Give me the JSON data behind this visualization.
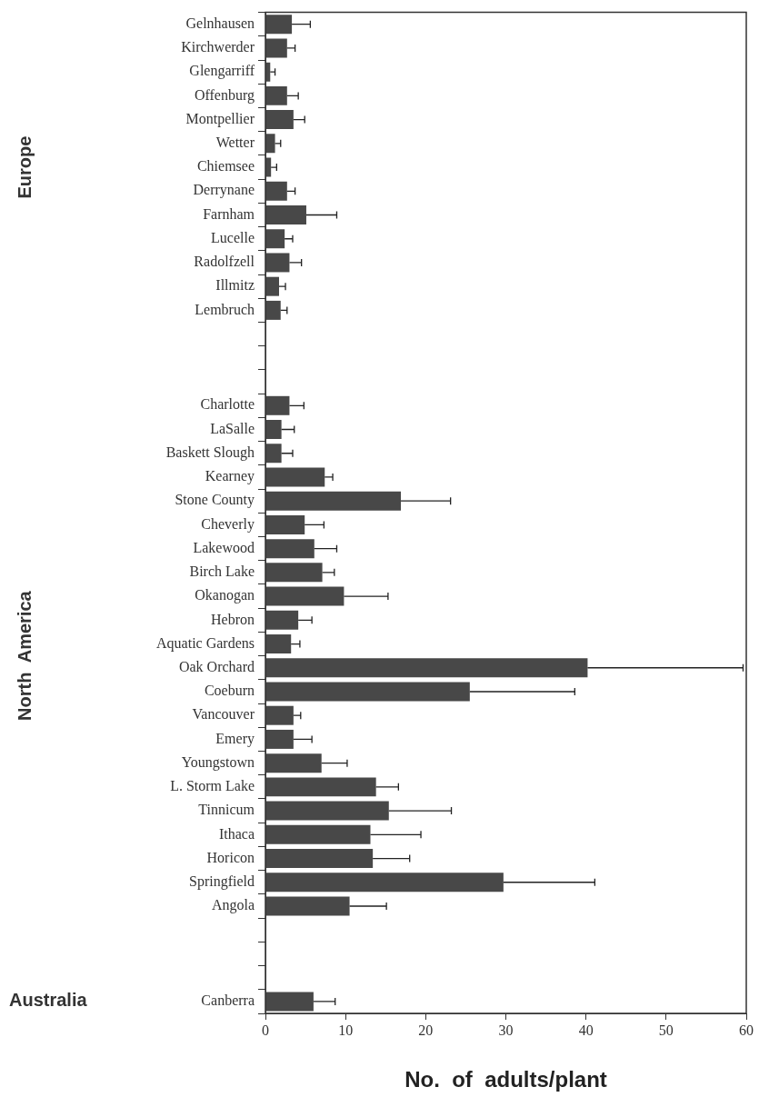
{
  "chart_data": {
    "type": "bar",
    "orientation": "horizontal",
    "xlabel": "No.  of  adults/plant",
    "categories": [
      "Gelnhausen",
      "Kirchwerder",
      "Glengarriff",
      "Offenburg",
      "Montpellier",
      "Wetter",
      "Chiemsee",
      "Derrynane",
      "Farnham",
      "Lucelle",
      "Radolfzell",
      "Illmitz",
      "Lembruch",
      null,
      null,
      null,
      "Charlotte",
      "LaSalle",
      "Baskett Slough",
      "Kearney",
      "Stone County",
      "Cheverly",
      "Lakewood",
      "Birch Lake",
      "Okanogan",
      "Hebron",
      "Aquatic Gardens",
      "Oak Orchard",
      "Coeburn",
      "Vancouver",
      "Emery",
      "Youngstown",
      "L. Storm Lake",
      "Tinnicum",
      "Ithaca",
      "Horicon",
      "Springfield",
      "Angola",
      null,
      null,
      null,
      "Canberra"
    ],
    "values": [
      3.3,
      2.7,
      0.6,
      2.7,
      3.5,
      1.2,
      0.7,
      2.7,
      5.1,
      2.4,
      3.0,
      1.7,
      1.9,
      null,
      null,
      null,
      3.0,
      2.0,
      2.0,
      7.4,
      16.9,
      4.9,
      6.1,
      7.1,
      9.8,
      4.1,
      3.2,
      40.2,
      25.5,
      3.5,
      3.5,
      7.0,
      13.8,
      15.4,
      13.1,
      13.4,
      29.7,
      10.5,
      null,
      null,
      null,
      6.0
    ],
    "errors": [
      [
        3.3,
        5.6
      ],
      [
        2.7,
        3.7
      ],
      [
        0.6,
        1.2
      ],
      [
        2.7,
        4.1
      ],
      [
        3.5,
        4.9
      ],
      [
        1.2,
        1.9
      ],
      [
        0.7,
        1.4
      ],
      [
        2.7,
        3.7
      ],
      [
        5.1,
        8.9
      ],
      [
        2.4,
        3.4
      ],
      [
        3.0,
        4.5
      ],
      [
        1.7,
        2.5
      ],
      [
        1.9,
        2.7
      ],
      null,
      null,
      null,
      [
        3.0,
        4.8
      ],
      [
        2.0,
        3.6
      ],
      [
        2.0,
        3.4
      ],
      [
        7.4,
        8.4
      ],
      [
        16.9,
        23.1
      ],
      [
        4.9,
        7.3
      ],
      [
        6.1,
        8.9
      ],
      [
        7.1,
        8.6
      ],
      [
        9.8,
        15.3
      ],
      [
        4.1,
        5.8
      ],
      [
        3.2,
        4.3
      ],
      [
        40.2,
        59.6
      ],
      [
        25.5,
        38.6
      ],
      [
        3.5,
        4.4
      ],
      [
        3.5,
        5.8
      ],
      [
        7.0,
        10.2
      ],
      [
        13.8,
        16.6
      ],
      [
        15.4,
        23.2
      ],
      [
        13.1,
        19.4
      ],
      [
        13.4,
        18.0
      ],
      [
        29.7,
        41.1
      ],
      [
        10.5,
        15.1
      ],
      null,
      null,
      null,
      [
        6.0,
        8.7
      ]
    ],
    "color": "#484848",
    "xlim": [
      0,
      60
    ],
    "xticks": [
      0,
      10,
      20,
      30,
      40,
      50,
      60
    ],
    "grid": false,
    "legend": false,
    "annotations": [
      "Europe",
      "North  America",
      "Australia"
    ]
  }
}
